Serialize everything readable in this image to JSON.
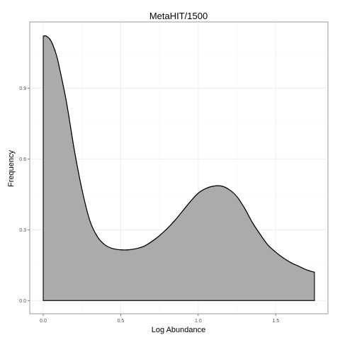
{
  "chart_data": {
    "type": "area",
    "title": "MetaHIT/1500",
    "xlabel": "Log Abundance",
    "ylabel": "Frequency",
    "xlim": [
      -0.087,
      1.837
    ],
    "ylim": [
      -0.056,
      1.18
    ],
    "xticks": [
      0.0,
      0.5,
      1.0,
      1.5
    ],
    "xtick_labels": [
      "0.0",
      "0.5",
      "1.0",
      "1.5"
    ],
    "yticks": [
      0.0,
      0.3,
      0.6,
      0.9
    ],
    "ytick_labels": [
      "0.0",
      "0.3",
      "0.6",
      "0.9"
    ],
    "grid": true,
    "legend": "none",
    "fill_color": "#ababab",
    "line_color": "#000000",
    "series": [
      {
        "x": [
          0.0,
          0.02,
          0.05,
          0.08,
          0.1,
          0.15,
          0.2,
          0.25,
          0.3,
          0.35,
          0.4,
          0.45,
          0.5,
          0.55,
          0.6,
          0.65,
          0.7,
          0.75,
          0.8,
          0.85,
          0.9,
          0.95,
          1.0,
          1.05,
          1.1,
          1.15,
          1.2,
          1.25,
          1.3,
          1.35,
          1.4,
          1.45,
          1.5,
          1.55,
          1.6,
          1.65,
          1.7,
          1.75
        ],
        "y": [
          1.12,
          1.12,
          1.1,
          1.05,
          1.0,
          0.84,
          0.64,
          0.47,
          0.34,
          0.27,
          0.235,
          0.22,
          0.215,
          0.215,
          0.22,
          0.23,
          0.25,
          0.275,
          0.305,
          0.34,
          0.38,
          0.42,
          0.455,
          0.475,
          0.485,
          0.485,
          0.47,
          0.44,
          0.39,
          0.33,
          0.28,
          0.235,
          0.205,
          0.18,
          0.16,
          0.145,
          0.13,
          0.12
        ]
      }
    ]
  }
}
